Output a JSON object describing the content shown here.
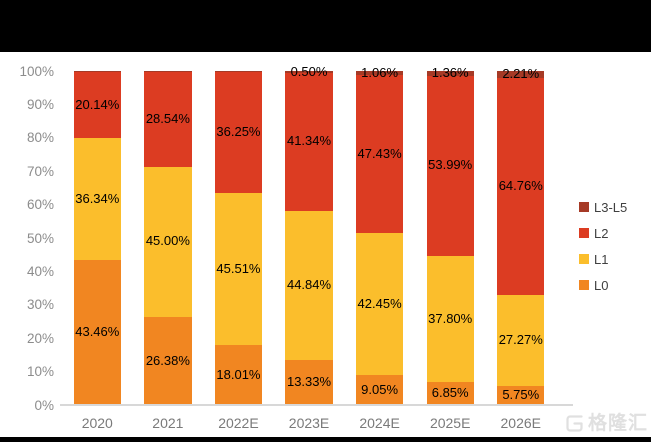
{
  "page": {
    "background": "#ffffff",
    "top_bar_color": "#000000",
    "bottom_bar_color": "#000000",
    "axis_line_color": "#d8d8d8"
  },
  "watermark": {
    "text": "格隆汇"
  },
  "chart_data": {
    "type": "bar",
    "stacked": true,
    "title": "",
    "xlabel": "",
    "ylabel": "",
    "ylim": [
      0,
      100
    ],
    "grid": false,
    "legend_position": "right",
    "categories": [
      "2020",
      "2021",
      "2022E",
      "2023E",
      "2024E",
      "2025E",
      "2026E"
    ],
    "y_axis_ticks": [
      "0%",
      "10%",
      "20%",
      "30%",
      "40%",
      "50%",
      "60%",
      "70%",
      "80%",
      "90%",
      "100%"
    ],
    "series": [
      {
        "name": "L0",
        "color": "#F18621",
        "values": [
          43.46,
          26.38,
          18.01,
          13.33,
          9.05,
          6.85,
          5.75
        ],
        "labels": [
          "43.46%",
          "26.38%",
          "18.01%",
          "13.33%",
          "9.05%",
          "6.85%",
          "5.75%"
        ]
      },
      {
        "name": "L1",
        "color": "#FBBE2C",
        "values": [
          36.34,
          45.0,
          45.51,
          44.84,
          42.45,
          37.8,
          27.27
        ],
        "labels": [
          "36.34%",
          "45.00%",
          "45.51%",
          "44.84%",
          "42.45%",
          "37.80%",
          "27.27%"
        ]
      },
      {
        "name": "L2",
        "color": "#DC3C22",
        "values": [
          20.14,
          28.54,
          36.25,
          41.34,
          47.43,
          53.99,
          64.76
        ],
        "labels": [
          "20.14%",
          "28.54%",
          "36.25%",
          "41.34%",
          "47.43%",
          "53.99%",
          "64.76%"
        ]
      },
      {
        "name": "L3-L5",
        "color": "#A63A26",
        "values": [
          0.06,
          0.08,
          0.23,
          0.5,
          1.06,
          1.36,
          2.21
        ],
        "labels": [
          "",
          "",
          "",
          "0.50%",
          "1.06%",
          "1.36%",
          "2.21%"
        ]
      }
    ],
    "legend_order": [
      "L3-L5",
      "L2",
      "L1",
      "L0"
    ]
  }
}
